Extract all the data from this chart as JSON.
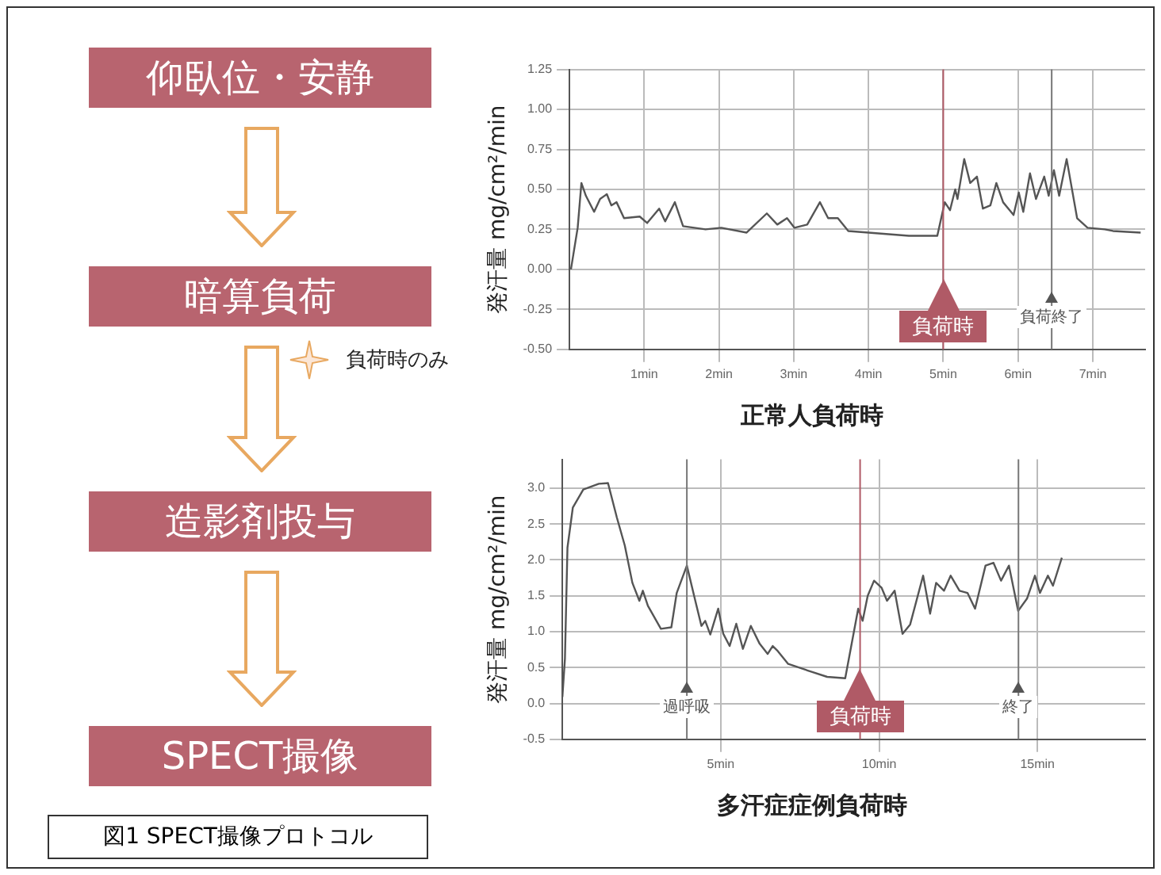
{
  "chart_data": [
    {
      "type": "other",
      "title": "図1 SPECT撮像プロトコル",
      "annotations": [
        "仰臥位・安静",
        "暗算負荷",
        "負荷時のみ",
        "造影剤投与",
        "SPECT撮像"
      ]
    },
    {
      "type": "line",
      "title": "正常人負荷時",
      "ylabel": "発汗量 mg/cm²/min",
      "xlim": [
        0,
        7.7
      ],
      "xticks": [
        {
          "value": 1,
          "label": "1min"
        },
        {
          "value": 2,
          "label": "2min"
        },
        {
          "value": 3,
          "label": "3min"
        },
        {
          "value": 4,
          "label": "4min"
        },
        {
          "value": 5,
          "label": "5min"
        },
        {
          "value": 6,
          "label": "6min"
        },
        {
          "value": 7,
          "label": "7min"
        }
      ],
      "ylim": [
        -0.5,
        1.25
      ],
      "yticks": [
        {
          "value": -0.5,
          "label": "-0.50"
        },
        {
          "value": -0.25,
          "label": "-0.25"
        },
        {
          "value": 0,
          "label": "0.00"
        },
        {
          "value": 0.25,
          "label": "0.25"
        },
        {
          "value": 0.5,
          "label": "0.50"
        },
        {
          "value": 0.75,
          "label": "0.75"
        },
        {
          "value": 1,
          "label": "1.00"
        },
        {
          "value": 1.25,
          "label": "1.25"
        }
      ],
      "grid": true,
      "legend": false,
      "marker": "none",
      "line_style": "solid",
      "series": [
        {
          "color": "#555555",
          "x": [
            0.02,
            0.11,
            0.16,
            0.22,
            0.33,
            0.41,
            0.5,
            0.56,
            0.63,
            0.73,
            0.94,
            1.04,
            1.2,
            1.28,
            1.41,
            1.52,
            1.82,
            2.03,
            2.37,
            2.64,
            2.78,
            2.91,
            3.01,
            3.18,
            3.35,
            3.46,
            3.59,
            3.73,
            4.0,
            4.54,
            4.92,
            5.02,
            5.09,
            5.16,
            5.19,
            5.28,
            5.36,
            5.45,
            5.53,
            5.63,
            5.71,
            5.8,
            5.94,
            6.01,
            6.07,
            6.16,
            6.24,
            6.35,
            6.41,
            6.48,
            6.55,
            6.65,
            6.79,
            6.93,
            7.16,
            7.27,
            7.64
          ],
          "values": [
            0.0,
            0.26,
            0.54,
            0.46,
            0.36,
            0.44,
            0.47,
            0.4,
            0.42,
            0.32,
            0.33,
            0.29,
            0.38,
            0.3,
            0.42,
            0.27,
            0.25,
            0.26,
            0.23,
            0.35,
            0.28,
            0.32,
            0.26,
            0.28,
            0.42,
            0.32,
            0.32,
            0.24,
            0.23,
            0.21,
            0.21,
            0.42,
            0.37,
            0.5,
            0.44,
            0.69,
            0.54,
            0.58,
            0.38,
            0.4,
            0.54,
            0.42,
            0.34,
            0.48,
            0.36,
            0.6,
            0.44,
            0.58,
            0.46,
            0.62,
            0.46,
            0.69,
            0.32,
            0.26,
            0.25,
            0.24,
            0.23
          ]
        }
      ],
      "ref_lines": [
        {
          "axis": "x",
          "value": 5.0,
          "label": "負荷時",
          "color": "#b05a66"
        },
        {
          "axis": "x",
          "value": 6.45,
          "label": "負荷終了"
        }
      ]
    },
    {
      "type": "line",
      "title": "多汗症症例負荷時",
      "ylabel": "発汗量 mg/cm²/min",
      "xlim": [
        0,
        18.4
      ],
      "xticks": [
        {
          "value": 5,
          "label": "5min"
        },
        {
          "value": 10,
          "label": "10min"
        },
        {
          "value": 15,
          "label": "15min"
        }
      ],
      "ylim": [
        -0.5,
        3.4
      ],
      "yticks": [
        {
          "value": -0.5,
          "label": "-0.5"
        },
        {
          "value": 0,
          "label": "0.0"
        },
        {
          "value": 0.5,
          "label": "0.5"
        },
        {
          "value": 1,
          "label": "1.0"
        },
        {
          "value": 1.5,
          "label": "1.5"
        },
        {
          "value": 2,
          "label": "2.0"
        },
        {
          "value": 2.5,
          "label": "2.5"
        },
        {
          "value": 3,
          "label": "3.0"
        }
      ],
      "grid": true,
      "legend": false,
      "marker": "none",
      "line_style": "solid",
      "series": [
        {
          "color": "#555555",
          "x": [
            0,
            0.08,
            0.16,
            0.33,
            0.66,
            1.15,
            1.44,
            1.72,
            1.97,
            2.21,
            2.43,
            2.54,
            2.7,
            3.11,
            3.44,
            3.61,
            3.93,
            4.18,
            4.39,
            4.51,
            4.67,
            4.92,
            5.08,
            5.28,
            5.49,
            5.7,
            5.95,
            6.23,
            6.48,
            6.64,
            6.8,
            7.13,
            7.87,
            8.36,
            8.93,
            9.34,
            9.48,
            9.64,
            9.84,
            10.08,
            10.25,
            10.49,
            10.74,
            10.98,
            11.39,
            11.61,
            11.8,
            12.05,
            12.26,
            12.54,
            12.79,
            13.03,
            13.36,
            13.61,
            13.85,
            14.1,
            14.39,
            14.67,
            14.92,
            15.08,
            15.33,
            15.49,
            15.77
          ],
          "values": [
            0.09,
            0.62,
            2.17,
            2.73,
            2.98,
            3.06,
            3.07,
            2.59,
            2.2,
            1.68,
            1.43,
            1.57,
            1.36,
            1.04,
            1.06,
            1.54,
            1.92,
            1.46,
            1.08,
            1.15,
            0.96,
            1.32,
            0.97,
            0.8,
            1.11,
            0.76,
            1.08,
            0.83,
            0.69,
            0.8,
            0.73,
            0.55,
            0.44,
            0.37,
            0.35,
            1.32,
            1.15,
            1.5,
            1.71,
            1.61,
            1.43,
            1.57,
            0.97,
            1.1,
            1.78,
            1.25,
            1.68,
            1.57,
            1.78,
            1.57,
            1.54,
            1.32,
            1.92,
            1.96,
            1.71,
            1.92,
            1.29,
            1.46,
            1.78,
            1.54,
            1.78,
            1.64,
            2.03
          ]
        }
      ],
      "ref_lines": [
        {
          "axis": "x",
          "value": 3.93,
          "label": "過呼吸"
        },
        {
          "axis": "x",
          "value": 9.4,
          "label": "負荷時",
          "color": "#b05a66"
        },
        {
          "axis": "x",
          "value": 14.4,
          "label": "終了"
        }
      ]
    }
  ]
}
